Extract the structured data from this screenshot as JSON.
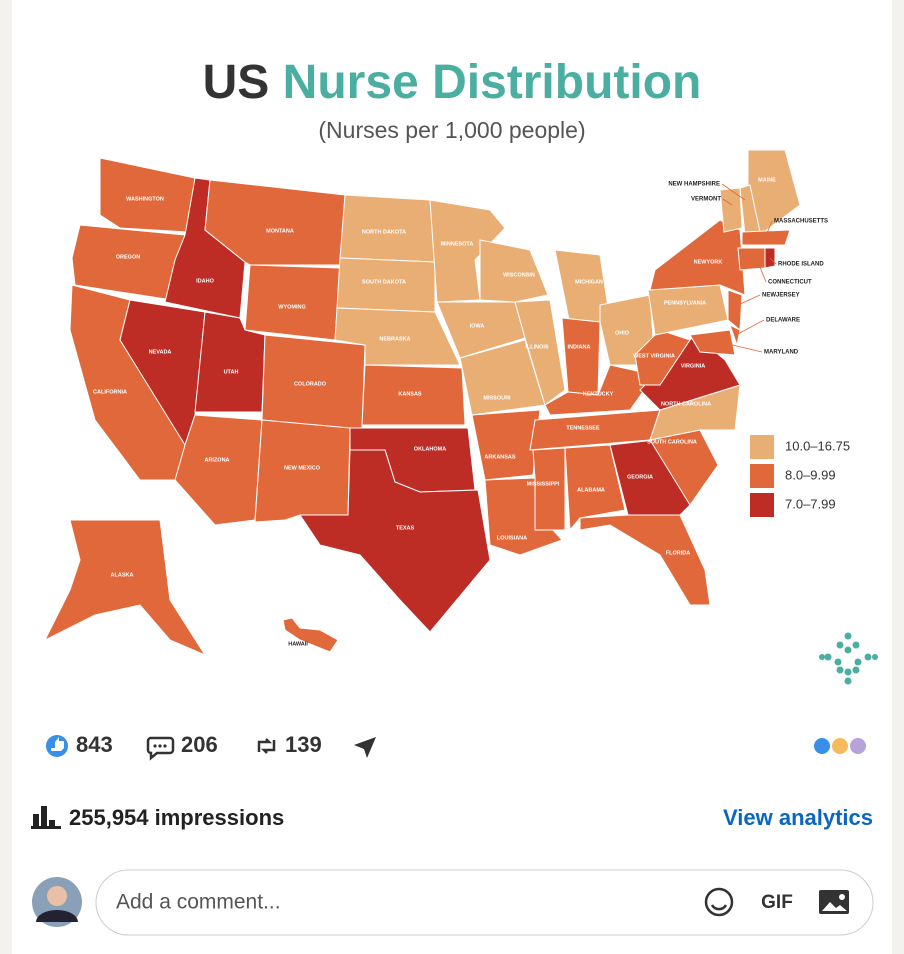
{
  "map": {
    "title_prefix": "US",
    "title_highlight": "Nurse Distribution",
    "subtitle": "(Nurses per 1,000 people)",
    "legend": [
      {
        "label": "10.0–16.75",
        "color": "#e9ae74"
      },
      {
        "label": "8.0–9.99",
        "color": "#e0683a"
      },
      {
        "label": "7.0–7.99",
        "color": "#bd2d26"
      }
    ],
    "states": [
      {
        "label": "WASHINGTON",
        "bin": "8.0–9.99"
      },
      {
        "label": "OREGON",
        "bin": "8.0–9.99"
      },
      {
        "label": "CALIFORNIA",
        "bin": "8.0–9.99"
      },
      {
        "label": "NEVADA",
        "bin": "7.0–7.99"
      },
      {
        "label": "IDAHO",
        "bin": "7.0–7.99"
      },
      {
        "label": "MONTANA",
        "bin": "8.0–9.99"
      },
      {
        "label": "WYOMING",
        "bin": "8.0–9.99"
      },
      {
        "label": "UTAH",
        "bin": "7.0–7.99"
      },
      {
        "label": "COLORADO",
        "bin": "8.0–9.99"
      },
      {
        "label": "ARIZONA",
        "bin": "8.0–9.99"
      },
      {
        "label": "NEW MEXICO",
        "bin": "8.0–9.99"
      },
      {
        "label": "NORTH DAKOTA",
        "bin": "10.0–16.75"
      },
      {
        "label": "SOUTH DAKOTA",
        "bin": "10.0–16.75"
      },
      {
        "label": "NEBRASKA",
        "bin": "10.0–16.75"
      },
      {
        "label": "KANSAS",
        "bin": "8.0–9.99"
      },
      {
        "label": "OKLAHOMA",
        "bin": "7.0–7.99"
      },
      {
        "label": "TEXAS",
        "bin": "7.0–7.99"
      },
      {
        "label": "MINNESOTA",
        "bin": "10.0–16.75"
      },
      {
        "label": "IOWA",
        "bin": "10.0–16.75"
      },
      {
        "label": "MISSOURI",
        "bin": "10.0–16.75"
      },
      {
        "label": "ARKANSAS",
        "bin": "8.0–9.99"
      },
      {
        "label": "LOUISIANA",
        "bin": "8.0–9.99"
      },
      {
        "label": "WISCONSIN",
        "bin": "10.0–16.75"
      },
      {
        "label": "ILLINOIS",
        "bin": "10.0–16.75"
      },
      {
        "label": "MICHIGAN",
        "bin": "10.0–16.75"
      },
      {
        "label": "INDIANA",
        "bin": "8.0–9.99"
      },
      {
        "label": "OHIO",
        "bin": "10.0–16.75"
      },
      {
        "label": "KENTUCKY",
        "bin": "8.0–9.99"
      },
      {
        "label": "TENNESSEE",
        "bin": "8.0–9.99"
      },
      {
        "label": "MISSISSIPPI",
        "bin": "8.0–9.99"
      },
      {
        "label": "ALABAMA",
        "bin": "8.0–9.99"
      },
      {
        "label": "GEORGIA",
        "bin": "7.0–7.99"
      },
      {
        "label": "FLORIDA",
        "bin": "8.0–9.99"
      },
      {
        "label": "SOUTH CAROLINA",
        "bin": "8.0–9.99"
      },
      {
        "label": "NORTH CAROLINA",
        "bin": "10.0–16.75"
      },
      {
        "label": "VIRGINIA",
        "bin": "7.0–7.99"
      },
      {
        "label": "WEST VIRGINIA",
        "bin": "8.0–9.99"
      },
      {
        "label": "PENNSYLVANIA",
        "bin": "10.0–16.75"
      },
      {
        "label": "NEWYORK",
        "bin": "8.0–9.99"
      },
      {
        "label": "MAINE",
        "bin": "10.0–16.75"
      },
      {
        "label": "VERMONT",
        "bin": "10.0–16.75"
      },
      {
        "label": "NEW HAMPSHIRE",
        "bin": "10.0–16.75"
      },
      {
        "label": "MASSACHUSETTS",
        "bin": "8.0–9.99"
      },
      {
        "label": "RHODE ISLAND",
        "bin": "7.0–7.99"
      },
      {
        "label": "CONNECTICUT",
        "bin": "8.0–9.99"
      },
      {
        "label": "NEWJERSEY",
        "bin": "8.0–9.99"
      },
      {
        "label": "DELAWARE",
        "bin": "8.0–9.99"
      },
      {
        "label": "MARYLAND",
        "bin": "8.0–9.99"
      },
      {
        "label": "ALASKA",
        "bin": "8.0–9.99"
      },
      {
        "label": "HAWAII",
        "bin": "8.0–9.99"
      }
    ]
  },
  "social": {
    "reactions": 843,
    "comments": 206,
    "reposts": 139,
    "impressions": "255,954 impressions",
    "analytics": "View analytics",
    "comment_placeholder": "Add a comment...",
    "gif": "GIF"
  }
}
